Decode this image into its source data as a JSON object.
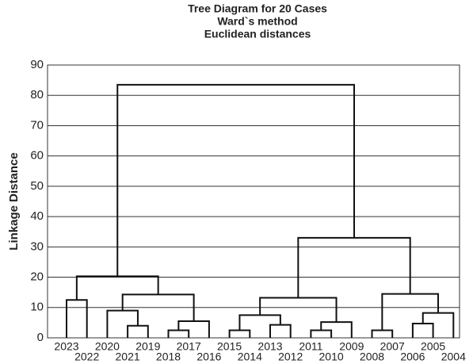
{
  "chart_data": {
    "type": "dendrogram",
    "title": "Tree Diagram for 20 Cases",
    "subtitle": [
      "Ward`s method",
      "Euclidean distances"
    ],
    "y_label": "Linkage Distance",
    "ylim": [
      0,
      90
    ],
    "yticks": [
      0,
      10,
      20,
      30,
      40,
      50,
      60,
      70,
      80,
      90
    ],
    "grid": true,
    "color": "#111111",
    "tree": {
      "height": 83.5,
      "children": [
        {
          "height": 20.3,
          "children": [
            {
              "height": 12.5,
              "children": [
                "2023",
                "2022"
              ]
            },
            {
              "height": 14.3,
              "children": [
                {
                  "height": 9,
                  "children": [
                    "2020",
                    {
                      "height": 4,
                      "children": [
                        "2021",
                        "2019"
                      ]
                    }
                  ]
                },
                {
                  "height": 5.5,
                  "children": [
                    {
                      "height": 2.5,
                      "children": [
                        "2018",
                        "2017"
                      ]
                    },
                    "2016"
                  ]
                }
              ]
            }
          ]
        },
        {
          "height": 33,
          "children": [
            {
              "height": 13.2,
              "children": [
                {
                  "height": 7.5,
                  "children": [
                    {
                      "height": 2.5,
                      "children": [
                        "2015",
                        "2014"
                      ]
                    },
                    {
                      "height": 4.3,
                      "children": [
                        "2013",
                        "2012"
                      ]
                    }
                  ]
                },
                {
                  "height": 5.2,
                  "children": [
                    {
                      "height": 2.5,
                      "children": [
                        "2011",
                        "2010"
                      ]
                    },
                    "2009"
                  ]
                }
              ]
            },
            {
              "height": 14.5,
              "children": [
                {
                  "height": 2.5,
                  "children": [
                    "2008",
                    "2007"
                  ]
                },
                {
                  "height": 8.2,
                  "children": [
                    {
                      "height": 4.7,
                      "children": [
                        "2006",
                        "2005"
                      ]
                    },
                    "2004"
                  ]
                }
              ]
            }
          ]
        }
      ]
    }
  }
}
